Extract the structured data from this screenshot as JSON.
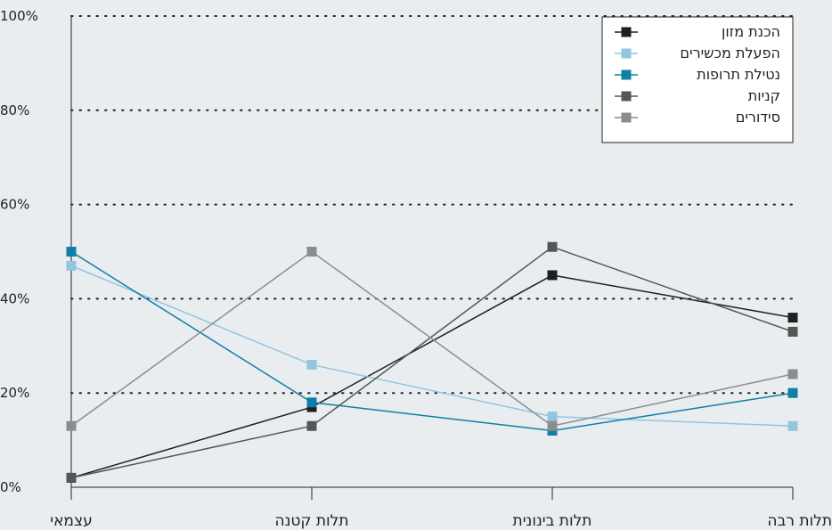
{
  "chart_data": {
    "type": "line",
    "title": "",
    "xlabel": "",
    "ylabel": "",
    "categories": [
      "עצמאי",
      "תלות קטנה",
      "תלות בינונית",
      "תלות רבה"
    ],
    "ylim": [
      0,
      100
    ],
    "yticks": [
      "0%",
      "20%",
      "40%",
      "60%",
      "80%",
      "100%"
    ],
    "grid": true,
    "legend_position": "top-right",
    "series": [
      {
        "name": "הכנת מזון",
        "color": "#1f1f1f",
        "values": [
          2,
          17,
          45,
          36
        ]
      },
      {
        "name": "הפעלת מכשירים",
        "color": "#92c5de",
        "values": [
          47,
          26,
          15,
          13
        ]
      },
      {
        "name": "נטילת תרופות",
        "color": "#0e7fa6",
        "values": [
          50,
          18,
          12,
          20
        ]
      },
      {
        "name": "קניות",
        "color": "#555555",
        "values": [
          2,
          13,
          51,
          33
        ]
      },
      {
        "name": "סידורים",
        "color": "#8c8c8c",
        "values": [
          13,
          50,
          13,
          24
        ]
      }
    ]
  }
}
